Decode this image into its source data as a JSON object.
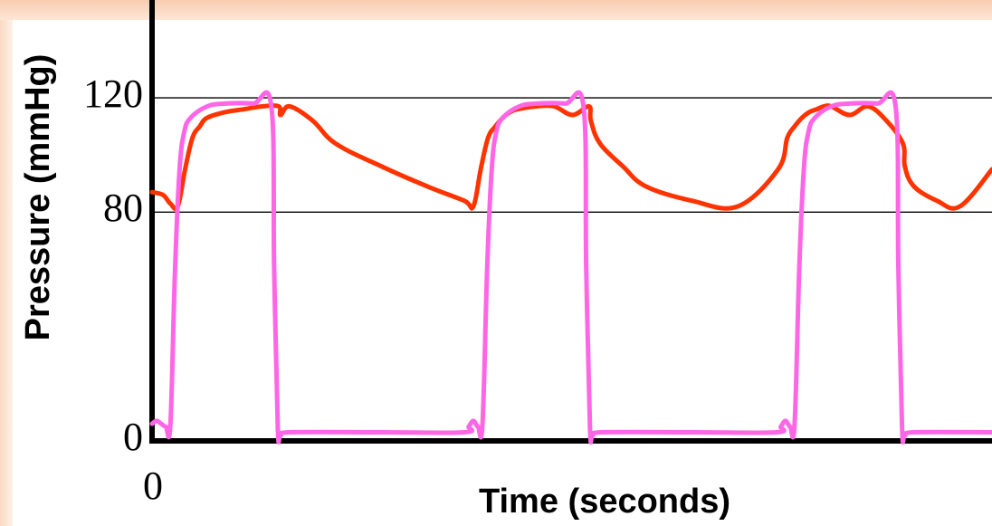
{
  "chart_data": {
    "type": "line",
    "xlabel": "Time (seconds)",
    "ylabel": "Pressure (mmHg)",
    "ylim": [
      0,
      140
    ],
    "grid": "horizontal lines at 80 and 120",
    "y_ticks": [
      {
        "value": 0,
        "label": "0"
      },
      {
        "value": 80,
        "label": "80"
      },
      {
        "value": 120,
        "label": "120"
      }
    ],
    "x_ticks": [
      {
        "value": 0,
        "label": "0"
      }
    ],
    "series": [
      {
        "color": "#ff3300",
        "x": [
          0,
          12,
          20,
          28,
          36,
          44,
          52,
          60,
          80,
          100,
          120,
          138,
          140,
          150,
          175,
          200,
          250,
          300,
          340,
          350,
          358,
          366,
          374,
          382,
          390,
          398,
          418,
          438,
          458,
          476,
          478,
          488,
          513,
          538,
          588,
          638,
          682,
          692,
          700,
          708,
          716,
          724,
          732,
          740,
          760,
          780,
          800,
          818,
          820,
          830,
          855,
          880,
          915
        ],
        "values": [
          87,
          86,
          83,
          82,
          95,
          106,
          110,
          113,
          115,
          116,
          117,
          117,
          114,
          117,
          112,
          104,
          96,
          89,
          84,
          82,
          95,
          106,
          110,
          113,
          115,
          116,
          117,
          117,
          114,
          117,
          112,
          104,
          96,
          89,
          84,
          82,
          95,
          106,
          110,
          113,
          115,
          116,
          117,
          117,
          114,
          117,
          112,
          104,
          96,
          89,
          84,
          82,
          95
        ]
      },
      {
        "color": "#ff66e6",
        "x": [
          0,
          5,
          10,
          15,
          20,
          25,
          30,
          35,
          42,
          60,
          80,
          110,
          130,
          133,
          137,
          140,
          150,
          250,
          340,
          345,
          350,
          355,
          360,
          365,
          370,
          375,
          382,
          400,
          420,
          450,
          470,
          473,
          477,
          480,
          490,
          590,
          680,
          685,
          690,
          695,
          700,
          705,
          710,
          715,
          722,
          740,
          760,
          790,
          810,
          813,
          817,
          820,
          830,
          915
        ],
        "values": [
          6,
          7,
          6,
          5,
          6,
          60,
          95,
          108,
          113,
          117,
          118,
          118,
          117,
          60,
          5,
          2,
          3,
          3,
          3,
          5,
          7,
          5,
          6,
          60,
          95,
          108,
          113,
          117,
          118,
          118,
          117,
          60,
          5,
          2,
          3,
          3,
          3,
          5,
          7,
          5,
          6,
          60,
          95,
          108,
          113,
          117,
          118,
          118,
          117,
          60,
          5,
          2,
          3,
          3
        ]
      }
    ]
  }
}
